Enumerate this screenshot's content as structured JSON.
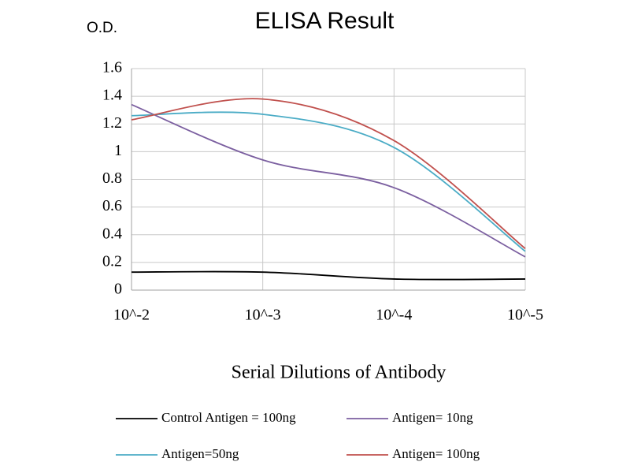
{
  "chart_data": {
    "type": "line",
    "title": "ELISA Result",
    "y_label": "O.D.",
    "x_label": "Serial Dilutions of Antibody",
    "categories": [
      "10^-2",
      "10^-3",
      "10^-4",
      "10^-5"
    ],
    "series": [
      {
        "name": "Control Antigen = 100ng",
        "color": "#000000",
        "values": [
          0.13,
          0.13,
          0.08,
          0.08
        ]
      },
      {
        "name": "Antigen= 10ng",
        "color": "#7b5fa0",
        "values": [
          1.34,
          0.94,
          0.74,
          0.24
        ]
      },
      {
        "name": "Antigen=50ng",
        "color": "#4bacc6",
        "values": [
          1.26,
          1.27,
          1.03,
          0.28
        ]
      },
      {
        "name": "Antigen= 100ng",
        "color": "#c0504d",
        "values": [
          1.23,
          1.38,
          1.08,
          0.3
        ]
      }
    ],
    "ylim": [
      0,
      1.6
    ],
    "yticks": [
      0,
      0.2,
      0.4,
      0.6,
      0.8,
      1,
      1.2,
      1.4,
      1.6
    ],
    "grid": true,
    "smooth": true,
    "legend": "bottom"
  }
}
